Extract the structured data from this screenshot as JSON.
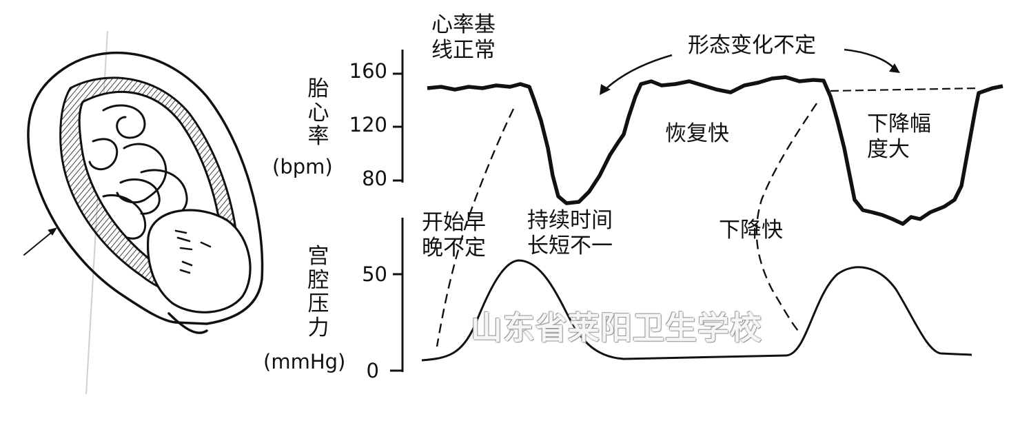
{
  "fhr_axis": {
    "label_chars": [
      "胎",
      "心",
      "率"
    ],
    "unit": "(bpm)",
    "ticks": [
      "160",
      "120",
      "80"
    ]
  },
  "uterine_axis": {
    "label_chars": [
      "宫",
      "腔",
      "压",
      "力"
    ],
    "unit": "(mmHg)",
    "ticks": [
      "50",
      "0"
    ]
  },
  "annotations": {
    "baseline_normal": [
      "心率基",
      "线正常"
    ],
    "shape_variable": "形态变化不定",
    "recovery_fast": "恢复快",
    "drop_large": [
      "下降幅",
      "度大"
    ],
    "onset_variable": [
      "开始早",
      "晚不定"
    ],
    "duration_variable": [
      "持续时间",
      "长短不一"
    ],
    "drop_fast": "下降快"
  },
  "watermark": "山东省莱阳卫生学校",
  "colors": {
    "ink": "#111111",
    "watermark": "#ffffff"
  }
}
